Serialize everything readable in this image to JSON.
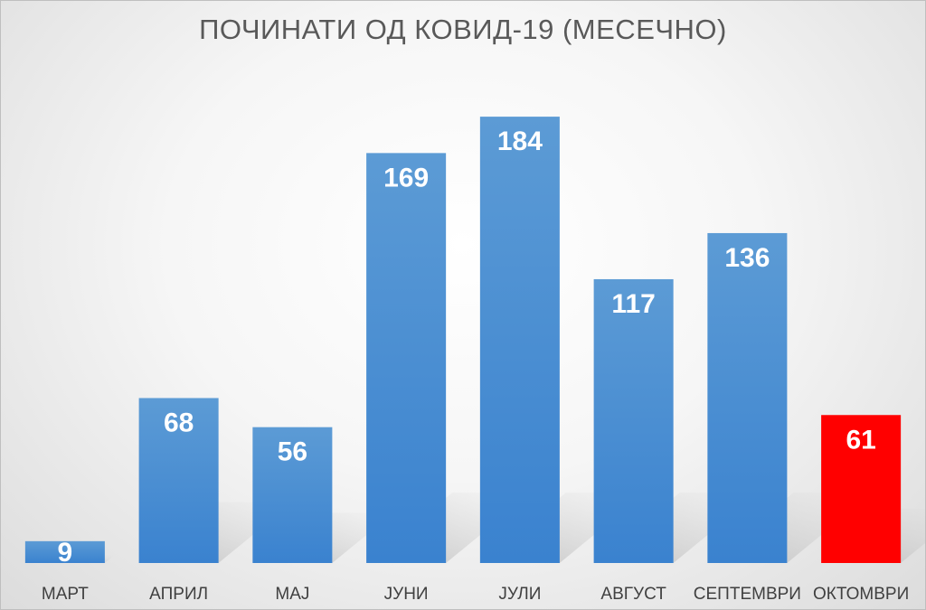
{
  "chart_data": {
    "type": "bar",
    "title": "ПОЧИНАТИ ОД КОВИД-19 (МЕСЕЧНО)",
    "categories": [
      "МАРТ",
      "АПРИЛ",
      "МАЈ",
      "ЈУНИ",
      "ЈУЛИ",
      "АВГУСТ",
      "СЕПТЕМВРИ",
      "ОКТОМВРИ"
    ],
    "values": [
      9,
      68,
      56,
      169,
      184,
      117,
      136,
      61
    ],
    "ylim": [
      0,
      190
    ],
    "grid": false,
    "colors": {
      "bar": "#3f88d3",
      "bar_light": "#5c9bd5",
      "highlight": "#ff0000",
      "highlight_category": "ОКТОМВРИ",
      "label": "#ffffff",
      "title": "#595959"
    }
  }
}
